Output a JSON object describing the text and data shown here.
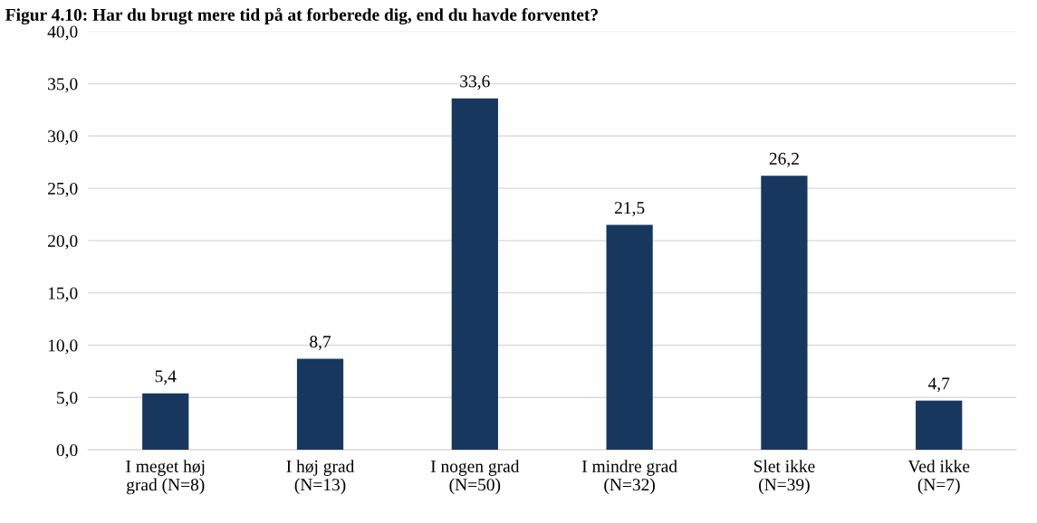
{
  "chart_data": {
    "type": "bar",
    "title": "Figur 4.10: Har du brugt mere tid på at forberede dig, end du havde forventet?",
    "categories": [
      "I meget høj grad (N=8)",
      "I høj grad (N=13)",
      "I nogen grad (N=50)",
      "I mindre grad (N=32)",
      "Slet ikke (N=39)",
      "Ved ikke (N=7)"
    ],
    "values": [
      5.4,
      8.7,
      33.6,
      21.5,
      26.2,
      4.7
    ],
    "value_labels": [
      "5,4",
      "8,7",
      "33,6",
      "21,5",
      "26,2",
      "4,7"
    ],
    "color": "#17375e",
    "ylim": [
      0,
      40
    ],
    "yticks": [
      {
        "value": 0,
        "label": "0,0"
      },
      {
        "value": 5,
        "label": "5,0"
      },
      {
        "value": 10,
        "label": "10,0"
      },
      {
        "value": 15,
        "label": "15,0"
      },
      {
        "value": 20,
        "label": "20,0"
      },
      {
        "value": 25,
        "label": "25,0"
      },
      {
        "value": 30,
        "label": "30,0"
      },
      {
        "value": 35,
        "label": "35,0"
      },
      {
        "value": 40,
        "label": "40,0"
      }
    ],
    "grid": "y"
  }
}
